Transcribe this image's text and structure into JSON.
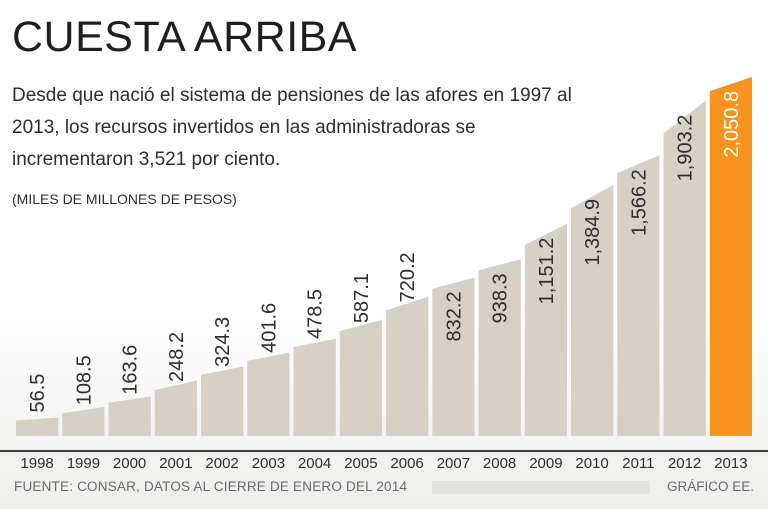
{
  "title": "CUESTA ARRIBA",
  "subtitle": "Desde que nació el sistema de pensiones de las afores en 1997 al 2013, los recursos invertidos en las administradoras se incrementaron 3,521 por ciento.",
  "units_label": "(MILES DE MILLONES DE PESOS)",
  "source": "FUENTE: CONSAR, DATOS AL CIERRE DE ENERO DEL 2014",
  "credit": "GRÁFICO EE.",
  "colors": {
    "bar": "#d6d1c4",
    "highlight": "#f7941d",
    "text": "#2b2b2b"
  },
  "chart_data": {
    "type": "bar",
    "title": "CUESTA ARRIBA",
    "ylabel": "Miles de millones de pesos",
    "xlabel": "",
    "categories": [
      "1998",
      "1999",
      "2000",
      "2001",
      "2002",
      "2003",
      "2004",
      "2005",
      "2006",
      "2007",
      "2008",
      "2009",
      "2010",
      "2011",
      "2012",
      "2013"
    ],
    "values": [
      56.5,
      108.5,
      163.6,
      248.2,
      324.3,
      401.6,
      478.5,
      587.1,
      720.2,
      832.2,
      938.3,
      1151.2,
      1384.9,
      1566.2,
      1903.2,
      2050.8
    ],
    "value_labels": [
      "56.5",
      "108.5",
      "163.6",
      "248.2",
      "324.3",
      "401.6",
      "478.5",
      "587.1",
      "720.2",
      "832.2",
      "938.3",
      "1,151.2",
      "1,384.9",
      "1,566.2",
      "1,903.2",
      "2,050.8"
    ],
    "highlight_index": 15,
    "ylim": [
      0,
      2100
    ],
    "grid": false,
    "legend": "none"
  }
}
